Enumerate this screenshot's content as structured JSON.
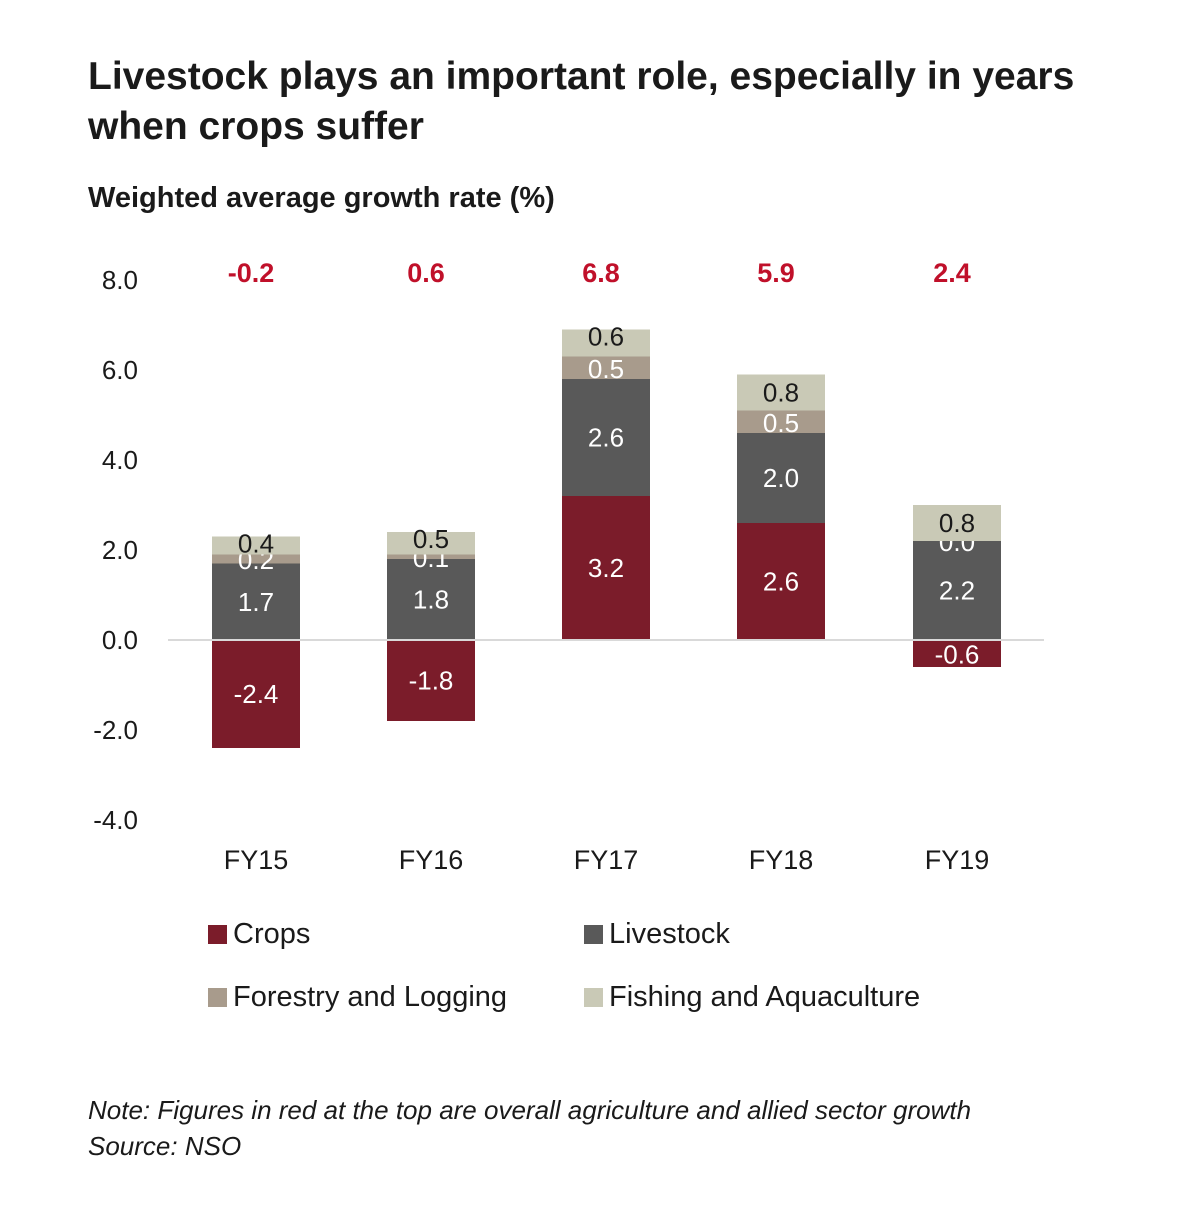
{
  "title": "Livestock plays an important role, especially in years when crops suffer",
  "subtitle": "Weighted average growth rate (%)",
  "note": "Note: Figures in red at the top are overall agriculture and allied sector growth",
  "source": "Source: NSO",
  "chart_data": {
    "type": "bar",
    "stacked": true,
    "title": "Livestock plays an important role, especially in years when crops suffer",
    "ylabel": "Weighted average growth rate (%)",
    "xlabel": "",
    "ylim": [
      -4.0,
      8.0
    ],
    "yticks": [
      "8.0",
      "6.0",
      "4.0",
      "2.0",
      "0.0",
      "-2.0",
      "-4.0"
    ],
    "ytick_values": [
      8,
      6,
      4,
      2,
      0,
      -2,
      -4
    ],
    "categories": [
      "FY15",
      "FY16",
      "FY17",
      "FY18",
      "FY19"
    ],
    "totals": [
      "-0.2",
      "0.6",
      "6.8",
      "5.9",
      "2.4"
    ],
    "series": [
      {
        "name": "Crops",
        "color": "#7b1c2a",
        "label_color": "#ffffff",
        "values": [
          -2.4,
          -1.8,
          3.2,
          2.6,
          -0.6
        ],
        "labels": [
          "-2.4",
          "-1.8",
          "3.2",
          "2.6",
          "-0.6"
        ]
      },
      {
        "name": "Livestock",
        "color": "#595959",
        "label_color": "#ffffff",
        "values": [
          1.7,
          1.8,
          2.6,
          2.0,
          2.2
        ],
        "labels": [
          "1.7",
          "1.8",
          "2.6",
          "2.0",
          "2.2"
        ]
      },
      {
        "name": "Forestry and Logging",
        "color": "#a89b8c",
        "label_color": "#ffffff",
        "values": [
          0.2,
          0.1,
          0.5,
          0.5,
          0.0
        ],
        "labels": [
          "0.2",
          "0.1",
          "0.5",
          "0.5",
          "0.0"
        ]
      },
      {
        "name": "Fishing and Aquaculture",
        "color": "#c9c9b6",
        "label_color": "#1a1a1a",
        "values": [
          0.4,
          0.5,
          0.6,
          0.8,
          0.8
        ],
        "labels": [
          "0.4",
          "0.5",
          "0.6",
          "0.8",
          "0.8"
        ]
      }
    ],
    "legend": "bottom"
  }
}
